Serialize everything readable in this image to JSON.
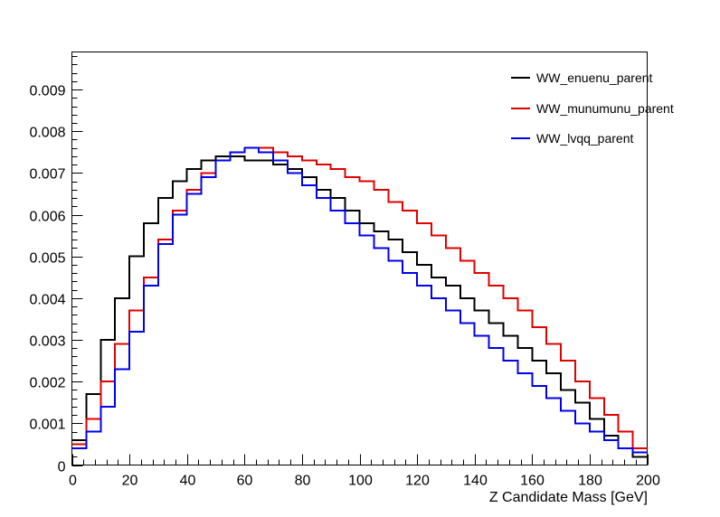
{
  "chart_data": {
    "type": "line",
    "title": "",
    "xlabel": "Z Candidate Mass [GeV]",
    "ylabel": "",
    "xlim": [
      0,
      200
    ],
    "ylim": [
      0,
      0.0099
    ],
    "x_ticks": [
      0,
      20,
      40,
      60,
      80,
      100,
      120,
      140,
      160,
      180,
      200
    ],
    "x_tick_labels": [
      "0",
      "20",
      "40",
      "60",
      "80",
      "100",
      "120",
      "140",
      "160",
      "180",
      "200"
    ],
    "y_ticks": [
      0,
      0.001,
      0.002,
      0.003,
      0.004,
      0.005,
      0.006,
      0.007,
      0.008,
      0.009
    ],
    "y_tick_labels": [
      "0",
      "0.001",
      "0.002",
      "0.003",
      "0.004",
      "0.005",
      "0.006",
      "0.007",
      "0.008",
      "0.009"
    ],
    "grid": false,
    "legend_position": "top-right",
    "histogram_bin_width": 5,
    "x": [
      2.5,
      7.5,
      12.5,
      17.5,
      22.5,
      27.5,
      32.5,
      37.5,
      42.5,
      47.5,
      52.5,
      57.5,
      62.5,
      67.5,
      72.5,
      77.5,
      82.5,
      87.5,
      92.5,
      97.5,
      102.5,
      107.5,
      112.5,
      117.5,
      122.5,
      127.5,
      132.5,
      137.5,
      142.5,
      147.5,
      152.5,
      157.5,
      162.5,
      167.5,
      172.5,
      177.5,
      182.5,
      187.5,
      192.5,
      197.5
    ],
    "series": [
      {
        "name": "WW_enuenu_parent",
        "color": "#000000",
        "values": [
          0.0006,
          0.0017,
          0.003,
          0.004,
          0.005,
          0.0058,
          0.0064,
          0.0068,
          0.0071,
          0.0073,
          0.0074,
          0.0074,
          0.0073,
          0.0073,
          0.0072,
          0.0071,
          0.0069,
          0.0066,
          0.0064,
          0.0061,
          0.0058,
          0.0056,
          0.0054,
          0.0051,
          0.0048,
          0.0045,
          0.0043,
          0.004,
          0.0037,
          0.0034,
          0.0031,
          0.0028,
          0.0025,
          0.0022,
          0.0018,
          0.0015,
          0.0011,
          0.0007,
          0.0004,
          0.0002
        ]
      },
      {
        "name": "WW_munumunu_parent",
        "color": "#e00000",
        "values": [
          0.0005,
          0.0011,
          0.002,
          0.0029,
          0.0037,
          0.0045,
          0.0054,
          0.0061,
          0.0066,
          0.007,
          0.0073,
          0.0075,
          0.0076,
          0.0076,
          0.0075,
          0.0074,
          0.0073,
          0.0072,
          0.0071,
          0.0069,
          0.0068,
          0.0066,
          0.0063,
          0.0061,
          0.0058,
          0.0055,
          0.0052,
          0.0049,
          0.0046,
          0.0043,
          0.004,
          0.0037,
          0.0033,
          0.0029,
          0.0025,
          0.002,
          0.0016,
          0.0012,
          0.0008,
          0.0004
        ]
      },
      {
        "name": "WW_lvqq_parent",
        "color": "#0000ee",
        "values": [
          0.0004,
          0.0008,
          0.0014,
          0.0023,
          0.0032,
          0.0043,
          0.0053,
          0.006,
          0.0065,
          0.0069,
          0.0073,
          0.0075,
          0.0076,
          0.0075,
          0.0073,
          0.007,
          0.0067,
          0.0064,
          0.0061,
          0.0058,
          0.0055,
          0.0052,
          0.0049,
          0.0046,
          0.0043,
          0.004,
          0.0037,
          0.0034,
          0.0031,
          0.0028,
          0.0025,
          0.0022,
          0.0019,
          0.0016,
          0.0013,
          0.001,
          0.0008,
          0.0006,
          0.0004,
          0.0003
        ]
      }
    ]
  }
}
